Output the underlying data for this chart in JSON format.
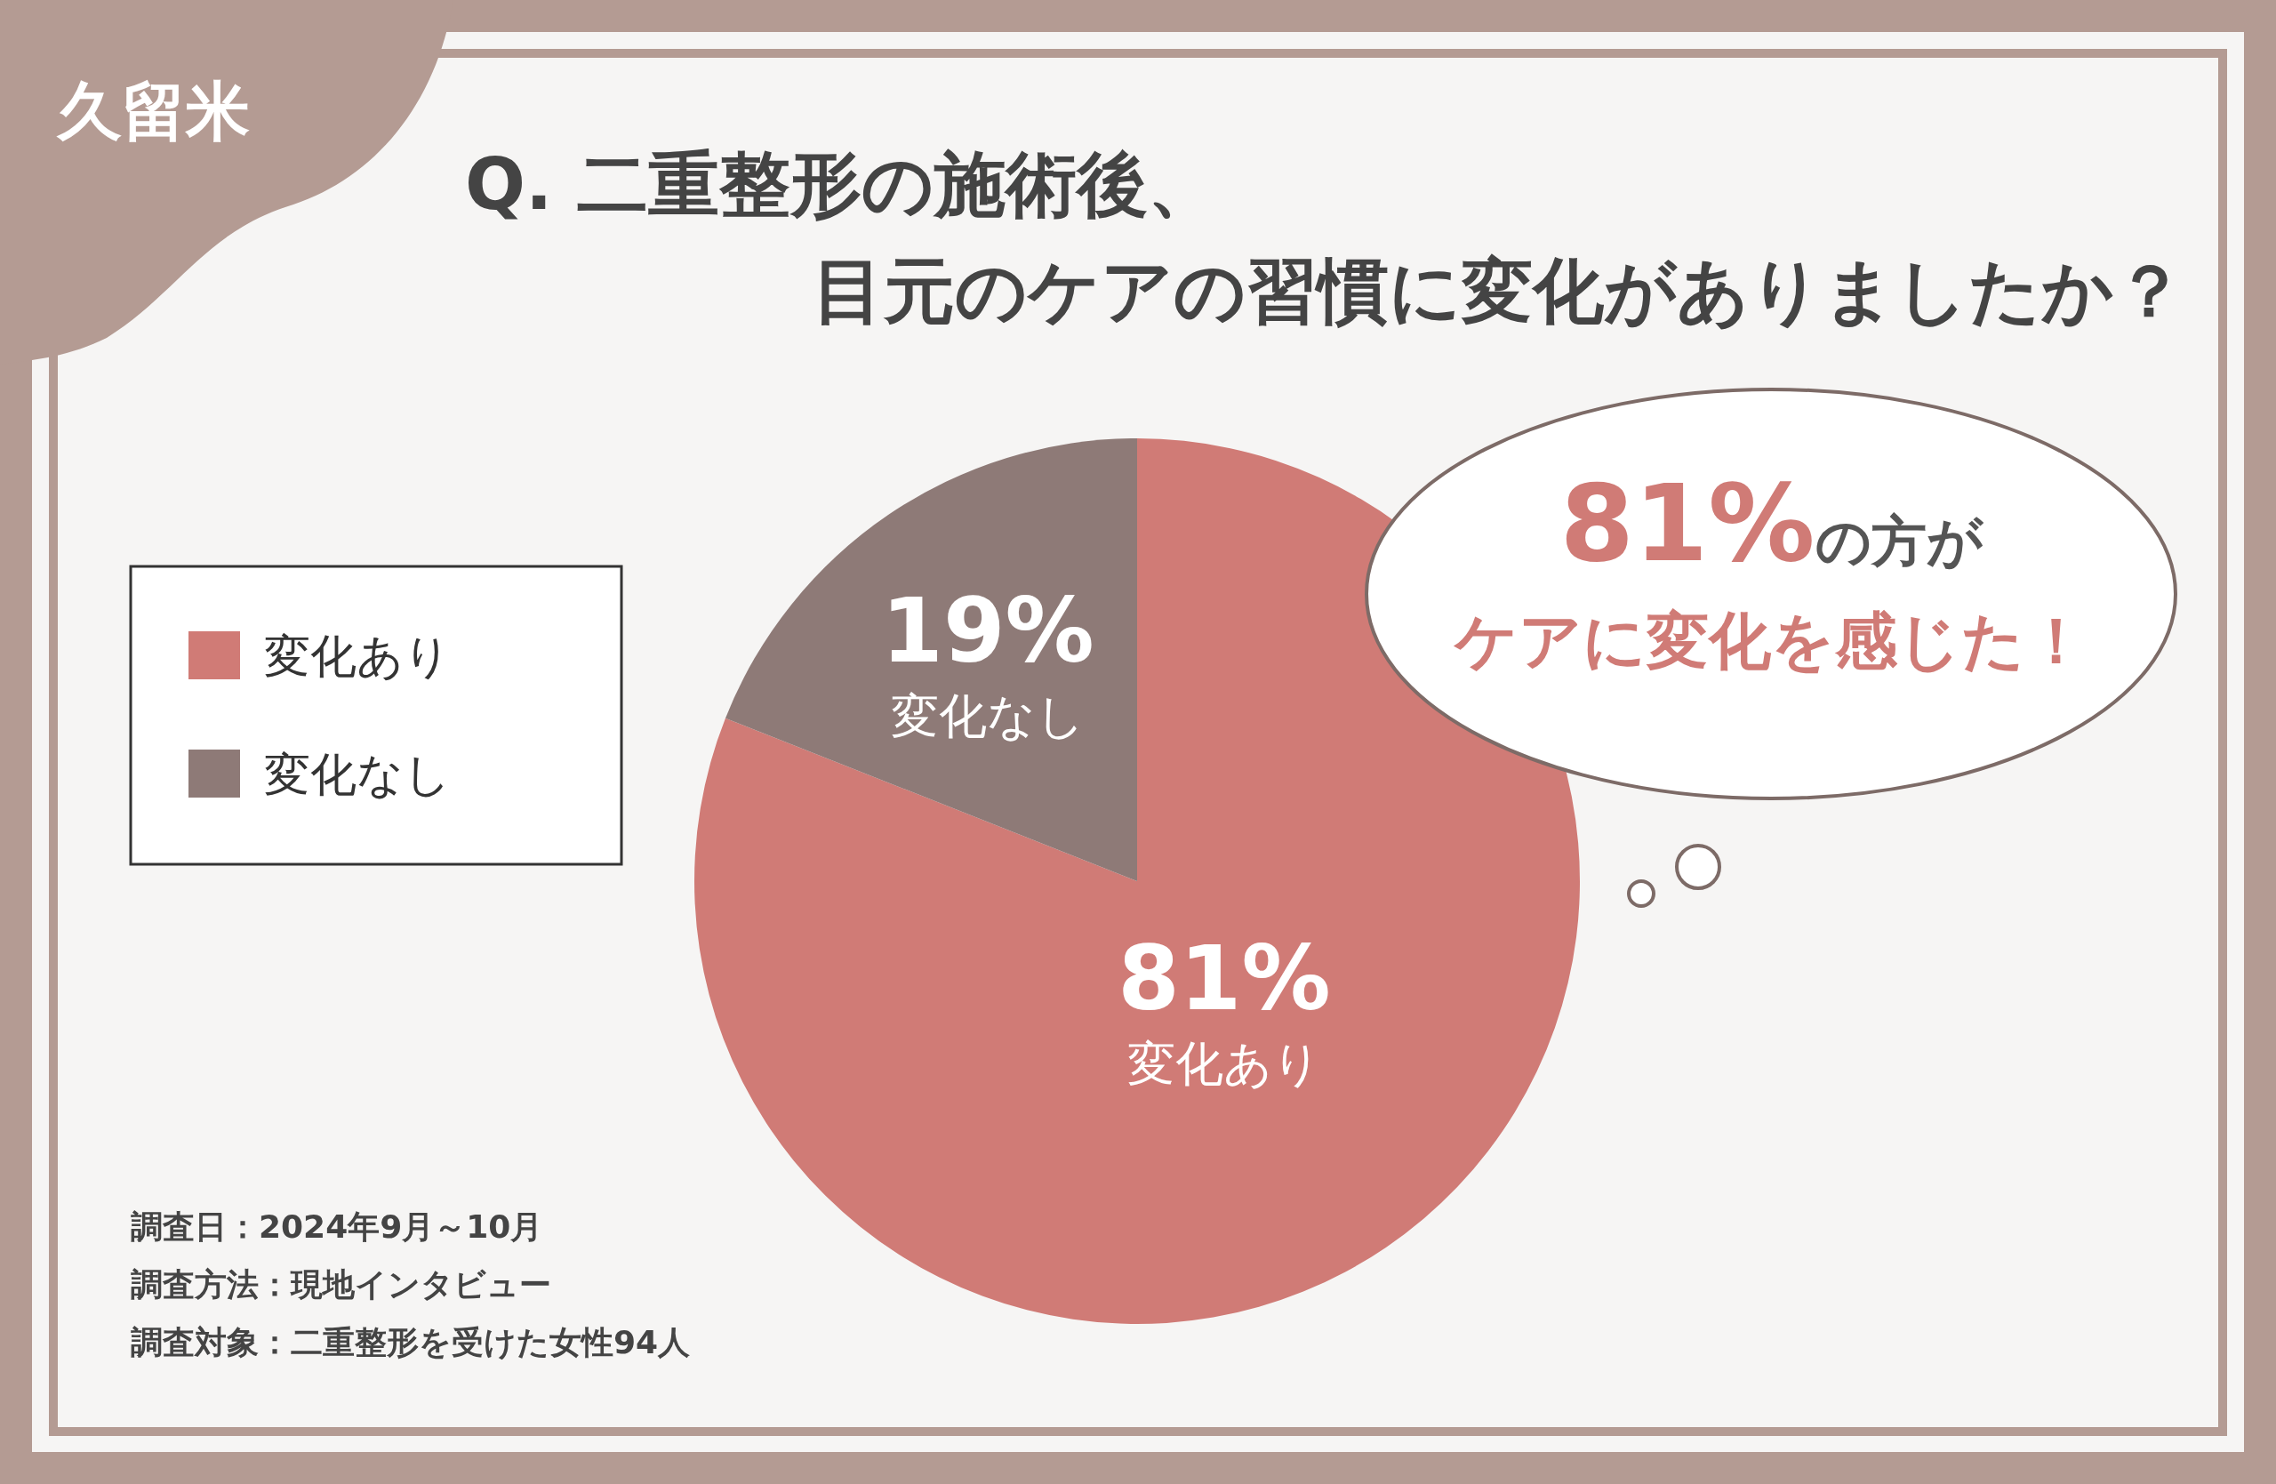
{
  "chart_data": {
    "type": "pie",
    "title": "Q. 二重整形の施術後、",
    "subtitle": "目元のケアの習慣に変化がありましたか？",
    "categories": [
      "変化あり",
      "変化なし"
    ],
    "values": [
      81,
      19
    ],
    "colors": [
      "#d07b76",
      "#8e7a77"
    ],
    "value_labels": [
      "81%",
      "19%"
    ],
    "legend": "left",
    "annotations": [
      "久留米",
      "81%の方が",
      "ケアに変化を感じた！",
      "調査日：2024年9月～10月",
      "調査方法：現地インタビュー",
      "調査対象：二重整形を受けた女性94人"
    ]
  }
}
